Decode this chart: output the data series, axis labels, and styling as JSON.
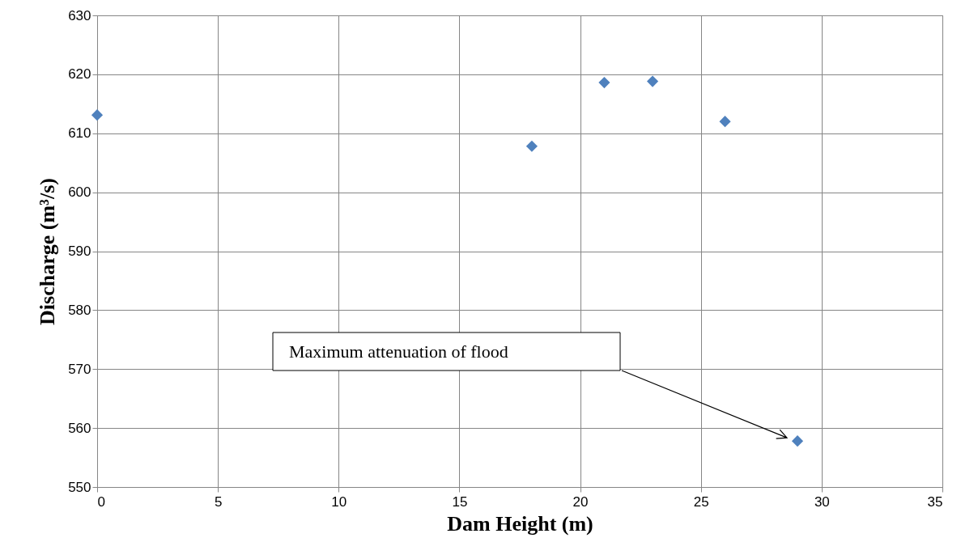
{
  "chart_data": {
    "type": "scatter",
    "xlabel": "Dam Height (m)",
    "ylabel": "Discharge (m³/s)",
    "x": [
      0,
      18,
      21,
      23,
      26,
      29
    ],
    "series": [
      {
        "color": "#4f81bd",
        "values": [
          613.1,
          607.8,
          618.6,
          618.8,
          612.0,
          557.8
        ]
      }
    ],
    "xlim": [
      0,
      35
    ],
    "xticks": [
      0,
      5,
      10,
      15,
      20,
      25,
      30,
      35
    ],
    "ylim": [
      550,
      630
    ],
    "yticks": [
      550,
      560,
      570,
      580,
      590,
      600,
      610,
      620,
      630
    ],
    "grid": true,
    "marker": "diamond",
    "annotations": [
      "Maximum attenuation of flood"
    ]
  }
}
